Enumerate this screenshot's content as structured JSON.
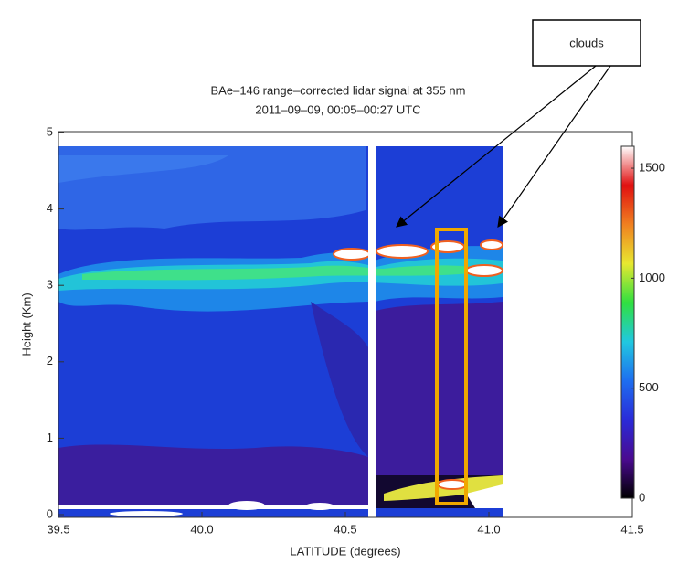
{
  "chart_data": {
    "type": "contour",
    "title": "BAe–146 range–corrected lidar signal at 355 nm",
    "subtitle": "2011–09–09, 00:05–00:27 UTC",
    "x_label": "LATITUDE (degrees)",
    "y_label": "Height (Km)",
    "xlim": [
      39.5,
      41.5
    ],
    "xticks": [
      39.5,
      {
        "value": 40,
        "label": "40.0"
      },
      40.5,
      {
        "value": 41,
        "label": "41.0"
      },
      41.5
    ],
    "ylim": [
      0,
      5
    ],
    "yticks": [
      0,
      1,
      2,
      3,
      4,
      5
    ],
    "colorbar": {
      "lim": [
        0,
        1600
      ],
      "ticks": [
        0,
        500,
        1000,
        1500
      ],
      "colors": [
        "#000000",
        "#4a0a90",
        "#2a2ad8",
        "#1e6ef0",
        "#20c8e0",
        "#30e040",
        "#e8e830",
        "#f08020",
        "#e01010",
        "#ffffff"
      ]
    },
    "annotations": [
      "clouds"
    ]
  }
}
